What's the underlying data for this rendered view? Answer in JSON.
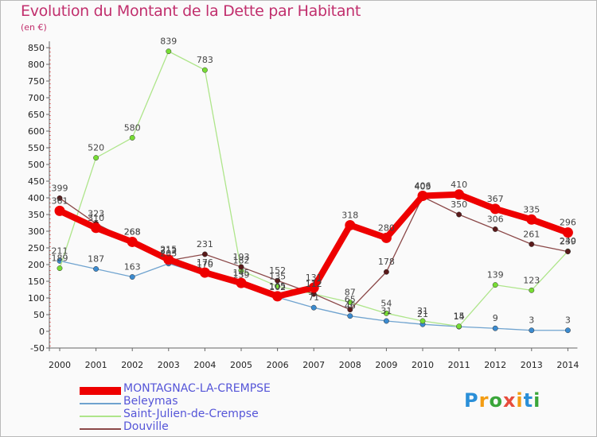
{
  "title": "Evolution du Montant de la Dette par Habitant",
  "subtitle": "(en €)",
  "logo": {
    "text": "Proxiti"
  },
  "chart_data": {
    "type": "line",
    "x": [
      "2000",
      "2001",
      "2002",
      "2003",
      "2004",
      "2005",
      "2006",
      "2007",
      "2008",
      "2009",
      "2010",
      "2011",
      "2012",
      "2013",
      "2014"
    ],
    "ylim": [
      -50,
      850
    ],
    "yticks": [
      -50,
      0,
      50,
      100,
      150,
      200,
      250,
      300,
      350,
      400,
      450,
      500,
      550,
      600,
      650,
      700,
      750,
      800,
      850
    ],
    "grid": false,
    "legend_position": "bottom-left",
    "series": [
      {
        "name": "MONTAGNAC-LA-CREMPSE",
        "color": "#ee0000",
        "marker": "#ee0000",
        "values": [
          361,
          310,
          268,
          215,
          176,
          145,
          105,
          131,
          318,
          280,
          406,
          410,
          367,
          335,
          296
        ],
        "labels": [
          "361",
          "310",
          "268",
          "215",
          "176",
          "145",
          "105",
          "131",
          "318",
          "280",
          "406",
          "410",
          "367",
          "335",
          "296"
        ]
      },
      {
        "name": "Beleymas",
        "color": "#6fa3cf",
        "marker": "#3b8bd0",
        "values": [
          211,
          187,
          163,
          203,
          170,
          139,
          102,
          71,
          46,
          31,
          21,
          14,
          9,
          3,
          3
        ],
        "labels": [
          "211",
          "187",
          "163",
          "203",
          "170",
          "139",
          "102",
          "71",
          "46",
          "31",
          "21",
          "14",
          "9",
          "3",
          "3"
        ]
      },
      {
        "name": "Saint-Julien-de-Crempse",
        "color": "#aee58a",
        "marker": "#77dd33",
        "values": [
          189,
          520,
          580,
          839,
          783,
          182,
          135,
          112,
          87,
          54,
          31,
          15,
          139,
          123,
          240
        ],
        "labels": [
          "189",
          "520",
          "580",
          "839",
          "783",
          "182",
          "135",
          "112",
          "87",
          "54",
          "31",
          "15",
          "139",
          "123",
          "240"
        ]
      },
      {
        "name": "Douville",
        "color": "#8b4848",
        "marker": "#5a1a1a",
        "values": [
          399,
          323,
          268,
          212,
          231,
          193,
          152,
          112,
          65,
          178,
          403,
          350,
          306,
          261,
          239
        ],
        "labels": [
          "399",
          "323",
          "268",
          "212",
          "231",
          "193",
          "152",
          "112",
          "65",
          "178",
          "403",
          "350",
          "306",
          "261",
          "239"
        ]
      }
    ]
  }
}
